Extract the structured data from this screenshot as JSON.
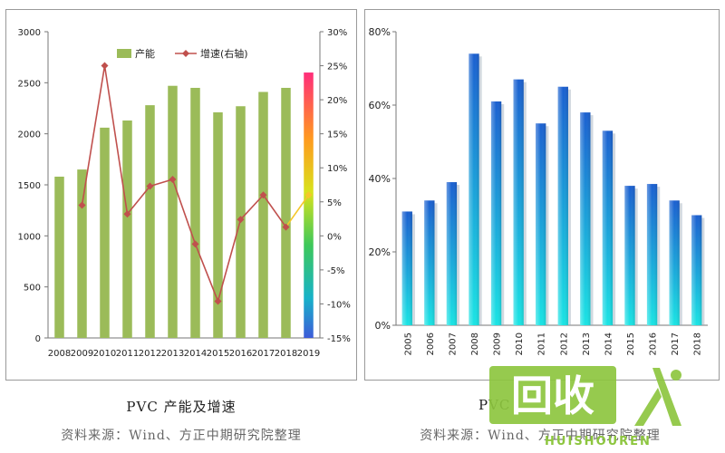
{
  "charts": {
    "left": {
      "caption": "PVC 产能及增速",
      "source": "资料来源：Wind、方正中期研究院整理",
      "legend_bar": "产能",
      "legend_line": "增速(右轴)"
    },
    "right": {
      "caption": "PVC",
      "source": "资料来源：Wind、方正中期研究院整理"
    }
  },
  "watermark": {
    "big_text": "回收",
    "small_text": "HUISHOUREN",
    "person_color": "#ffffff",
    "bg_color": "#8dc63f"
  },
  "chart_data": [
    {
      "type": "bar",
      "categories": [
        "2008",
        "2009",
        "2010",
        "2011",
        "2012",
        "2013",
        "2014",
        "2015",
        "2016",
        "2017",
        "2018",
        "2019"
      ],
      "series": [
        {
          "name": "产能",
          "kind": "bar",
          "axis": "left",
          "values": [
            1580,
            1650,
            2060,
            2130,
            2280,
            2470,
            2450,
            2210,
            2270,
            2410,
            2450,
            2600
          ]
        },
        {
          "name": "增速(右轴)",
          "kind": "line",
          "axis": "right",
          "values": [
            null,
            4.5,
            25,
            3.2,
            7.3,
            8.3,
            -1.2,
            -9.6,
            2.4,
            6,
            1.3,
            6
          ]
        }
      ],
      "ylim_left": [
        0,
        3000
      ],
      "yticks_left": [
        "0",
        "500",
        "1000",
        "1500",
        "2000",
        "2500",
        "3000"
      ],
      "ylim_right": [
        -15,
        30
      ],
      "yticks_right": [
        "-15%",
        "-10%",
        "-5%",
        "0%",
        "5%",
        "10%",
        "15%",
        "20%",
        "25%",
        "30%"
      ],
      "colors": {
        "bar": "#9bbb59",
        "line": "#c0504d"
      },
      "legend_position": "top",
      "grid": false
    },
    {
      "type": "bar",
      "categories": [
        "2005",
        "2006",
        "2007",
        "2008",
        "2009",
        "2010",
        "2011",
        "2012",
        "2013",
        "2014",
        "2015",
        "2016",
        "2017",
        "2018"
      ],
      "values": [
        31,
        34,
        39,
        74,
        61,
        67,
        55,
        65,
        58,
        53,
        38,
        38.5,
        34,
        30
      ],
      "ylim": [
        0,
        80
      ],
      "yticks": [
        "0%",
        "20%",
        "40%",
        "60%",
        "80%"
      ],
      "colors": {
        "bar_top": "#1a5fd0",
        "bar_bottom": "#19e4e4"
      },
      "grid": false
    }
  ]
}
